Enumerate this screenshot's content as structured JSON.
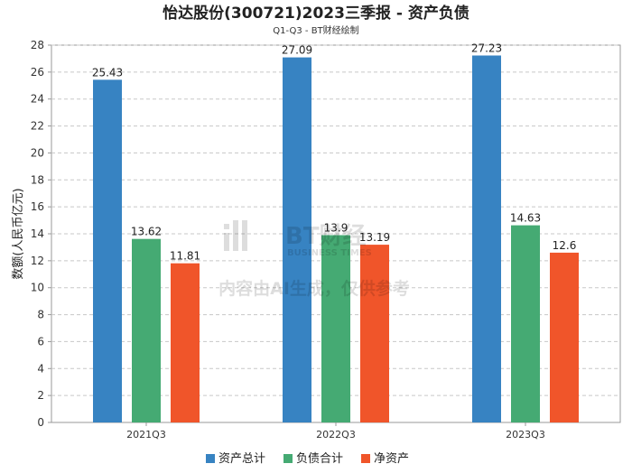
{
  "chart_data": {
    "type": "bar",
    "title": "怡达股份(300721)2023三季报 - 资产负债",
    "subtitle": "Q1-Q3 - BT财经绘制",
    "ylabel": "数额(人民币亿元)",
    "xlabel": "",
    "categories": [
      "2021Q3",
      "2022Q3",
      "2023Q3"
    ],
    "ylim": [
      0,
      28
    ],
    "yticks": [
      0,
      2,
      4,
      6,
      8,
      10,
      12,
      14,
      16,
      18,
      20,
      22,
      24,
      26,
      28
    ],
    "grid": true,
    "legend_position": "bottom",
    "series": [
      {
        "name": "资产总计",
        "color": "#3783c2",
        "values": [
          25.43,
          27.09,
          27.23
        ],
        "labels": [
          "25.43",
          "27.09",
          "27.23"
        ]
      },
      {
        "name": "负债合计",
        "color": "#45aa73",
        "values": [
          13.62,
          13.9,
          14.63
        ],
        "labels": [
          "13.62",
          "13.9",
          "14.63"
        ]
      },
      {
        "name": "净资产",
        "color": "#f0552a",
        "values": [
          11.81,
          13.19,
          12.6
        ],
        "labels": [
          "11.81",
          "13.19",
          "12.6"
        ]
      }
    ]
  },
  "watermark": {
    "brand": "BT财经",
    "brand_en": "BUSINESS TIMES",
    "disclaimer": "内容由AI生成，仅供参考"
  }
}
